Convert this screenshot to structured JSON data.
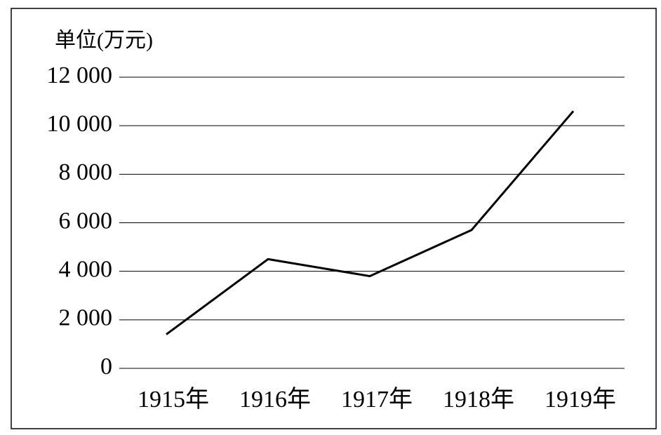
{
  "chart_data": {
    "type": "line",
    "y_axis_label": "单位(万元)",
    "categories": [
      "1915年",
      "1916年",
      "1917年",
      "1918年",
      "1919年"
    ],
    "values": [
      1400,
      4500,
      3800,
      5700,
      10600
    ],
    "color": "#000000",
    "ylim": [
      0,
      12000
    ],
    "yticks": [
      0,
      {
        "value": 2000,
        "label": "2 000"
      },
      {
        "value": 4000,
        "label": "4 000"
      },
      {
        "value": 6000,
        "label": "6 000"
      },
      {
        "value": 8000,
        "label": "8 000"
      },
      {
        "value": 10000,
        "label": "10 000"
      },
      {
        "value": 12000,
        "label": "12 000"
      }
    ],
    "grid": true
  }
}
